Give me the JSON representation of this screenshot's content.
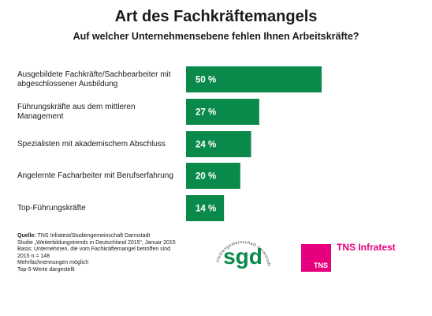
{
  "header": {
    "title": "Art des Fachkräftemangels",
    "subtitle": "Auf welcher Unternehmensebene fehlen Ihnen Arbeitskräfte?"
  },
  "chart_data": {
    "type": "bar",
    "orientation": "horizontal",
    "title": "Art des Fachkräftemangels",
    "subtitle": "Auf welcher Unternehmensebene fehlen Ihnen Arbeitskräfte?",
    "categories": [
      "Ausgebildete Fachkräfte/Sachbearbeiter mit abgeschlossener Ausbildung",
      "Führungskräfte aus dem mittleren Management",
      "Spezialisten mit akademischem Abschluss",
      "Angelernte Facharbeiter mit Berufserfahrung",
      "Top-Führungskräfte"
    ],
    "category_lines": [
      [
        "Ausgebildete Fachkräfte/Sachbearbeiter mit",
        "abgeschlossener Ausbildung"
      ],
      [
        "Führungskräfte aus dem mittleren Management"
      ],
      [
        "Spezialisten mit akademischem Abschluss"
      ],
      [
        "Angelernte Facharbeiter mit Berufserfahrung"
      ],
      [
        "Top-Führungskräfte"
      ]
    ],
    "values": [
      50,
      27,
      24,
      20,
      14
    ],
    "value_labels": [
      "50 %",
      "27 %",
      "24 %",
      "20 %",
      "14 %"
    ],
    "unit": "%",
    "xlim": [
      0,
      50
    ],
    "grid": false,
    "legend": "none",
    "bar_color": "#0a8a4a",
    "label_color": "#ffffff"
  },
  "footer": {
    "source_label": "Quelle:",
    "source_text": " TNS Infratest/Studiengemeinschaft Darmstadt",
    "lines": [
      "Studie „Weiterbildungstrends in Deutschland 2015“, Januar 2015",
      "Basis: Unternehmen, die vom Fachkräftemangel betroffen sind",
      "2015 n = 148",
      "Mehrfachnennungen möglich",
      "Top-5-Werte dargestellt"
    ]
  },
  "logos": {
    "sgd_letters": "sgd",
    "sgd_ring_text": "studiengemeinschaft darmstadt",
    "sgd_color": "#0a8a4a",
    "tns_box_text": "TNS",
    "tns_infratest": "TNS Infratest",
    "tns_color": "#e6007e"
  }
}
